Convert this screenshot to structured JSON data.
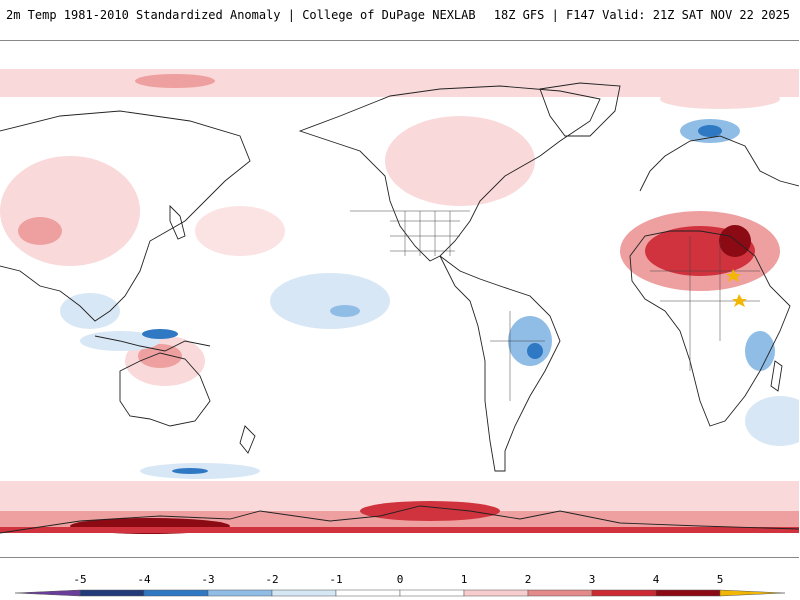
{
  "header": {
    "title_left": "2m Temp 1981-2010 Standardized Anomaly | College of DuPage NEXLAB",
    "title_right": "18Z GFS | F147 Valid: 21Z SAT NOV 22 2025"
  },
  "map": {
    "projection": "equirectangular",
    "center_longitude": 180,
    "content": "global standardized 2m temperature anomaly field with coastlines and borders"
  },
  "legend": {
    "tick_labels": [
      "-5",
      "-4",
      "-3",
      "-2",
      "-1",
      "0",
      "1",
      "2",
      "3",
      "4",
      "5"
    ],
    "colors": [
      "#5b3c9e",
      "#223a7a",
      "#2f78c4",
      "#8fbde6",
      "#d5e6f5",
      "#ffffff",
      "#ffffff",
      "#f6cccc",
      "#e48a8a",
      "#cc2a33",
      "#8b0a14",
      "#f2b705"
    ],
    "min_arrow_color": "#6a3d9a",
    "max_arrow_color": "#f2b705"
  },
  "colors": {
    "cold_light": "#d8e7f5",
    "cold_mid": "#8fbde6",
    "cold_strong": "#2f78c4",
    "warm_light": "#f9d9d9",
    "warm_mid": "#ee9f9f",
    "warm_strong": "#d0333d",
    "warm_extreme": "#8b0a14",
    "coastline": "#222222"
  }
}
